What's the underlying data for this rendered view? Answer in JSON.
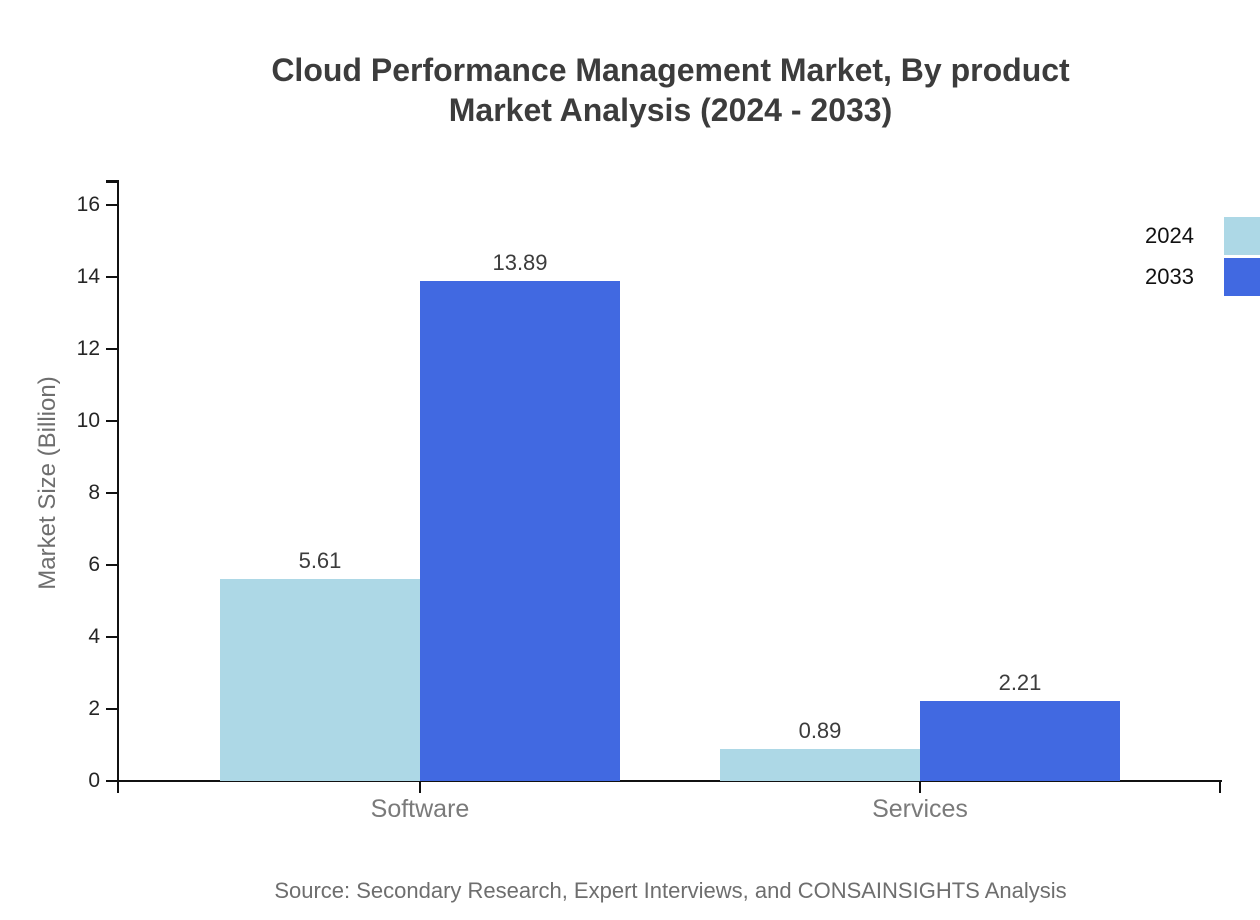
{
  "title": {
    "line1": "Cloud Performance Management Market, By product",
    "line2": "Market Analysis (2024 - 2033)"
  },
  "y_axis_title": "Market Size (Billion)",
  "source_note": "Source: Secondary Research, Expert Interviews, and CONSAINSIGHTS Analysis",
  "colors": {
    "series_2024": "#ADD8E6",
    "series_2033": "#4169E1",
    "axis": "#111111",
    "title_text": "#3C3C3C",
    "muted_text": "#6E6E6E",
    "category_text": "#7A7A7A"
  },
  "legend": {
    "position": "top-right",
    "items": [
      {
        "label": "2024",
        "color": "#ADD8E6"
      },
      {
        "label": "2033",
        "color": "#4169E1"
      }
    ]
  },
  "chart_data": {
    "type": "bar",
    "title": "Cloud Performance Management Market, By product Market Analysis (2024 - 2033)",
    "categories": [
      "Software",
      "Services"
    ],
    "series": [
      {
        "name": "2024",
        "color": "#ADD8E6",
        "values": [
          5.61,
          0.89
        ]
      },
      {
        "name": "2033",
        "color": "#4169E1",
        "values": [
          13.89,
          2.21
        ]
      }
    ],
    "xlabel": "",
    "ylabel": "Market Size (Billion)",
    "ylim": [
      0,
      16
    ],
    "yticks": [
      0,
      2,
      4,
      6,
      8,
      10,
      12,
      14,
      16
    ],
    "grid": false,
    "legend_position": "top-right",
    "value_labels": true
  }
}
